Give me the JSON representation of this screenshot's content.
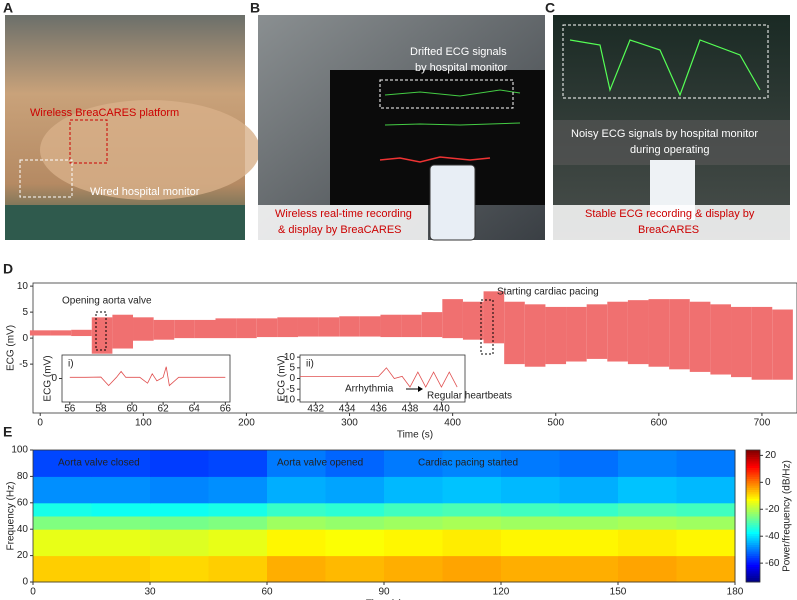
{
  "panel_labels": [
    "A",
    "B",
    "C",
    "D",
    "E"
  ],
  "photos": [
    {
      "annotations": [
        "Wireless BreaCARES platform",
        "Wired hospital monitor"
      ]
    },
    {
      "annotations": [
        "Drifted ECG signals",
        "by hospital monitor",
        "Wireless real-time recording",
        "& display by BreaCARES"
      ]
    },
    {
      "annotations": [
        "Noisy ECG signals by hospital monitor",
        "during operating",
        "Stable ECG recording & display by",
        "BreaCARES"
      ]
    }
  ],
  "chart_data": [
    {
      "type": "envelope",
      "xlabel": "Time (s)",
      "ylabel": "ECG (mV)",
      "color": "#f07070",
      "annotations": [
        "Opening aorta valve",
        "Starting cardiac pacing"
      ],
      "x": [
        0,
        20,
        40,
        60,
        80,
        100,
        120,
        140,
        160,
        180,
        200,
        220,
        240,
        260,
        280,
        300,
        320,
        340,
        360,
        380,
        400,
        420,
        440,
        460,
        480,
        500,
        520,
        540,
        560,
        580,
        600,
        620,
        640,
        660,
        680,
        700,
        720
      ],
      "low": [
        0.5,
        0.5,
        0.4,
        -3,
        -2,
        -0.5,
        -0.3,
        0,
        0,
        0,
        0,
        0.2,
        0.2,
        0.3,
        0.3,
        0.3,
        0.3,
        0.2,
        0.2,
        0.2,
        0,
        -0.3,
        -1,
        -5,
        -5.5,
        -5,
        -4.5,
        -4,
        -4.5,
        -5,
        -5.5,
        -6,
        -6.5,
        -7,
        -7.5,
        -8,
        -8
      ],
      "high": [
        1.5,
        1.5,
        1.6,
        4,
        4.5,
        4,
        3.5,
        3.5,
        3.5,
        3.8,
        3.8,
        3.8,
        4,
        4,
        4,
        4.2,
        4.2,
        4.5,
        4.5,
        5,
        7.5,
        7,
        9,
        7,
        6.5,
        6,
        6,
        6.5,
        7,
        7.3,
        7.5,
        7.5,
        7,
        6.5,
        6,
        6,
        5.5
      ],
      "xlim": [
        -7,
        734
      ],
      "xticks": [
        0,
        100,
        200,
        300,
        400,
        500,
        600,
        700
      ],
      "ylim": [
        -14.4,
        10.6
      ],
      "yticks": [
        10,
        5,
        0,
        -5
      ]
    },
    {
      "type": "line",
      "label": "i)",
      "ylabel": "ECG (mV)",
      "color": "#e05050",
      "x": [
        56,
        57,
        58,
        58.5,
        59,
        59.3,
        59.6,
        60,
        60.5,
        61,
        61.3,
        61.6,
        62,
        62.2,
        62.4,
        63,
        64,
        65,
        66
      ],
      "values": [
        0.5,
        0.5,
        0.6,
        -3,
        0.5,
        3,
        0.5,
        0.5,
        0.5,
        -2,
        2,
        -1,
        0.5,
        5,
        -3,
        0.5,
        0.5,
        0.5,
        0.5
      ],
      "xlim": [
        55.5,
        66.3
      ],
      "xticks": [
        56,
        58,
        60,
        62,
        64,
        66
      ],
      "ylim": [
        -10,
        10
      ],
      "yticks": [
        0
      ]
    },
    {
      "type": "line",
      "label": "ii)",
      "ylabel": "ECG (mV)",
      "color": "#e05050",
      "annotations": [
        "Arrhythmia",
        "Regular heartbeats"
      ],
      "x": [
        431,
        432,
        433,
        434,
        435,
        436,
        436.5,
        437,
        437.5,
        438,
        438.5,
        439,
        439.5,
        440,
        440.5,
        441
      ],
      "values": [
        1,
        1,
        1,
        1,
        1,
        1,
        5,
        0,
        1,
        -4,
        3,
        -4,
        3,
        -4,
        3,
        -4
      ],
      "xlim": [
        431,
        441.5
      ],
      "xticks": [
        432,
        434,
        436,
        438,
        440
      ],
      "ylim": [
        -11,
        11
      ],
      "yticks": [
        10,
        5,
        0,
        -5,
        -10
      ]
    },
    {
      "type": "heatmap",
      "xlabel": "Time (s)",
      "ylabel": "Frequency (Hz)",
      "colorbar_label": "Power/frequency (dB/Hz)",
      "annotations": [
        "Aorta valve closed",
        "Aorta valve opened",
        "Cardiac  pacing started"
      ],
      "time_edges": [
        0,
        15,
        30,
        45,
        60,
        75,
        90,
        105,
        120,
        135,
        150,
        165,
        180
      ],
      "freq_edges": [
        0,
        20,
        40,
        50,
        60,
        80,
        100
      ],
      "power": [
        [
          -8,
          -8,
          -9,
          -8,
          -5,
          -6,
          -5,
          -4,
          -5,
          -5,
          -4,
          -5
        ],
        [
          -15,
          -15,
          -16,
          -15,
          -12,
          -13,
          -12,
          -11,
          -12,
          -12,
          -11,
          -12
        ],
        [
          -25,
          -25,
          -26,
          -25,
          -22,
          -23,
          -22,
          -21,
          -22,
          -22,
          -21,
          -22
        ],
        [
          -35,
          -36,
          -36,
          -35,
          -32,
          -33,
          -31,
          -30,
          -31,
          -32,
          -30,
          -31
        ],
        [
          -48,
          -48,
          -49,
          -48,
          -45,
          -46,
          -44,
          -43,
          -44,
          -45,
          -43,
          -44
        ],
        [
          -55,
          -55,
          -56,
          -55,
          -50,
          -52,
          -50,
          -49,
          -50,
          -51,
          -49,
          -50
        ]
      ],
      "xlim": [
        0,
        180
      ],
      "xticks": [
        0,
        30,
        60,
        90,
        120,
        150,
        180
      ],
      "ylim": [
        0,
        100
      ],
      "yticks": [
        0,
        20,
        40,
        60,
        80,
        100
      ],
      "clim": [
        -74,
        24
      ],
      "cticks": [
        20,
        0,
        -20,
        -40,
        -60
      ]
    }
  ]
}
